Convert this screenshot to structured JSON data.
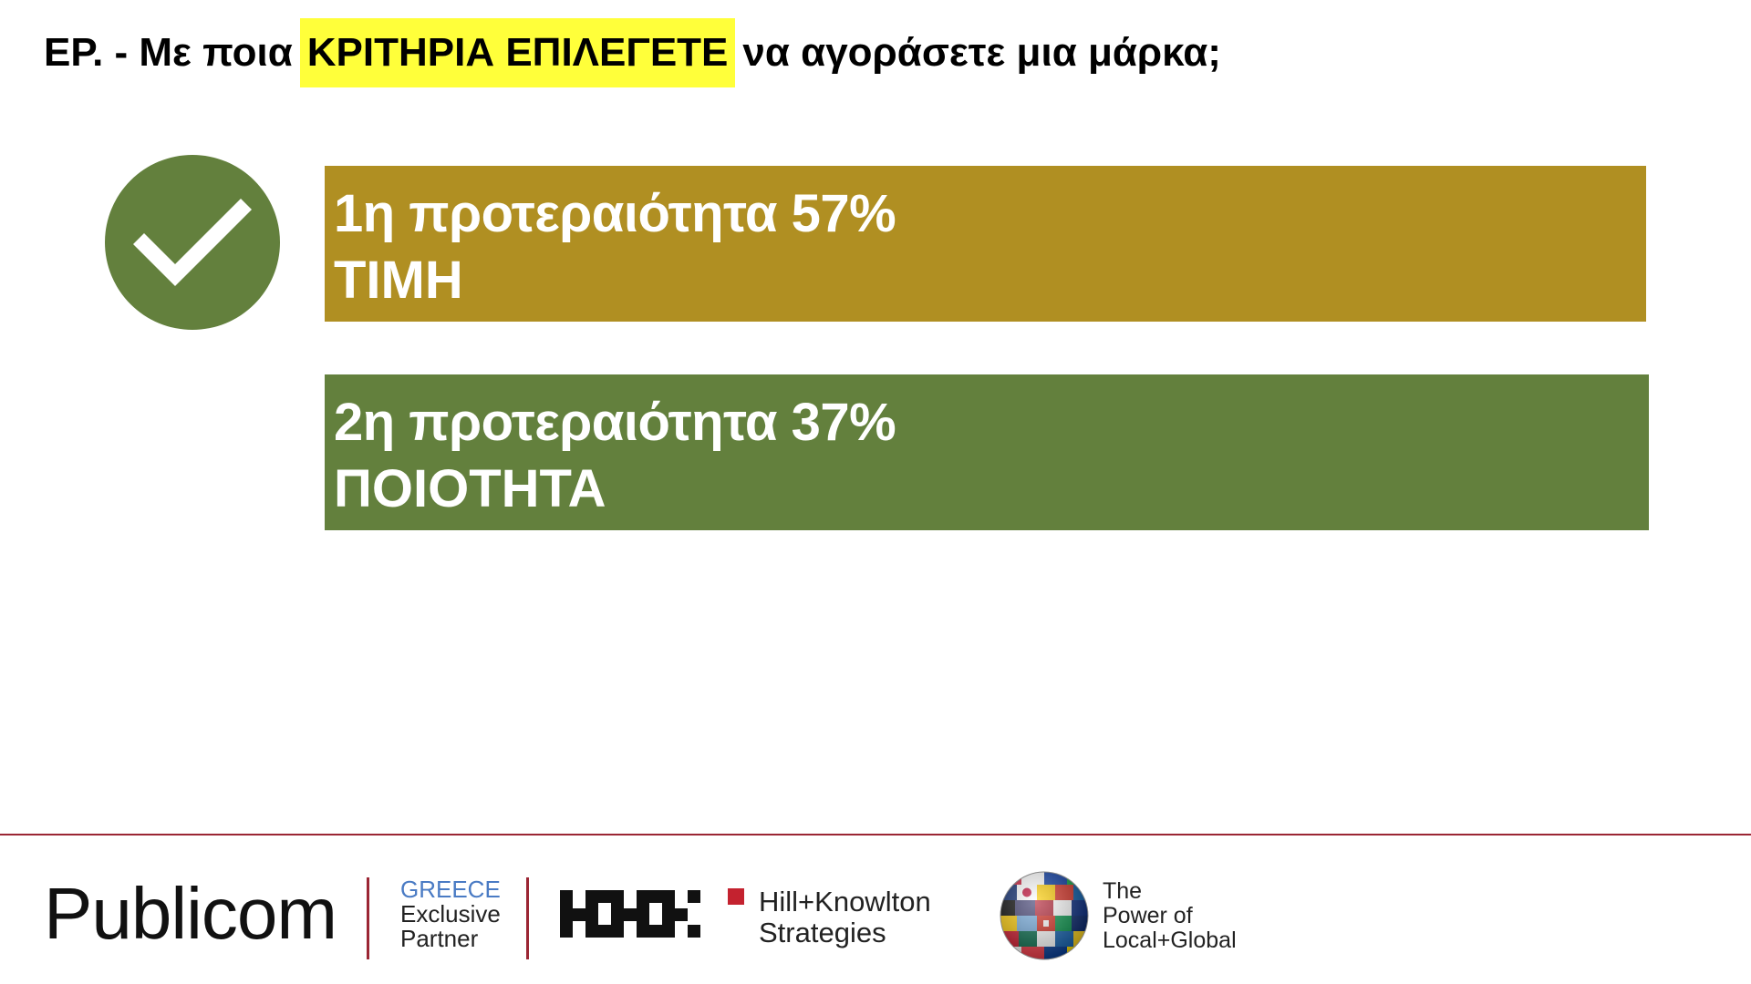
{
  "question": {
    "prefix": "ΕΡ. - Με ποια",
    "highlight": "ΚΡΙΤΗΡΙΑ ΕΠΙΛΕΓΕΤΕ",
    "suffix": "να αγοράσετε μια μάρκα;"
  },
  "badge": {
    "icon": "checkmark-icon",
    "color": "#63803d"
  },
  "priorities": [
    {
      "heading": "1η προτεραιότητα 57%",
      "label": "ΤΙΜΗ",
      "color": "#b08f22",
      "percent": 57
    },
    {
      "heading": "2η προτεραιότητα 37%",
      "label": "ΠΟΙΟΤΗΤΑ",
      "color": "#63803d",
      "percent": 37
    }
  ],
  "footer": {
    "brand": "Publicom",
    "partner_country": "GREECE",
    "partner_line1": "Exclusive",
    "partner_line2": "Partner",
    "hk_line1": "Hill+Knowlton",
    "hk_line2": "Strategies",
    "tagline_line1": "The",
    "tagline_line2": "Power of",
    "tagline_line3": "Local+Global",
    "accent_color": "#9b2634"
  }
}
